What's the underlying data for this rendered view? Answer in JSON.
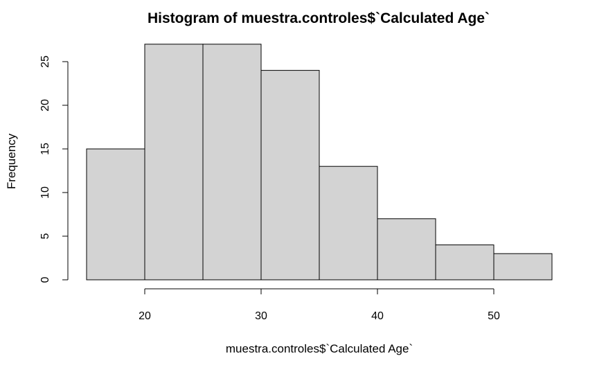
{
  "chart_data": {
    "type": "bar",
    "title": "Histogram of muestra.controles$`Calculated Age`",
    "xlabel": "muestra.controles$`Calculated Age`",
    "ylabel": "Frequency",
    "bins": [
      {
        "from": 15,
        "to": 20,
        "count": 15
      },
      {
        "from": 20,
        "to": 25,
        "count": 27
      },
      {
        "from": 25,
        "to": 30,
        "count": 27
      },
      {
        "from": 30,
        "to": 35,
        "count": 24
      },
      {
        "from": 35,
        "to": 40,
        "count": 13
      },
      {
        "from": 40,
        "to": 45,
        "count": 7
      },
      {
        "from": 45,
        "to": 50,
        "count": 4
      },
      {
        "from": 50,
        "to": 55,
        "count": 3
      }
    ],
    "xlim": [
      15,
      55
    ],
    "ylim": [
      0,
      25
    ],
    "x_ticks": [
      "20",
      "30",
      "40",
      "50"
    ],
    "y_ticks": [
      "0",
      "5",
      "10",
      "15",
      "20",
      "25"
    ],
    "grid": false,
    "legend": "none",
    "bar_fill": "#d3d3d3",
    "bar_stroke": "#000000"
  }
}
